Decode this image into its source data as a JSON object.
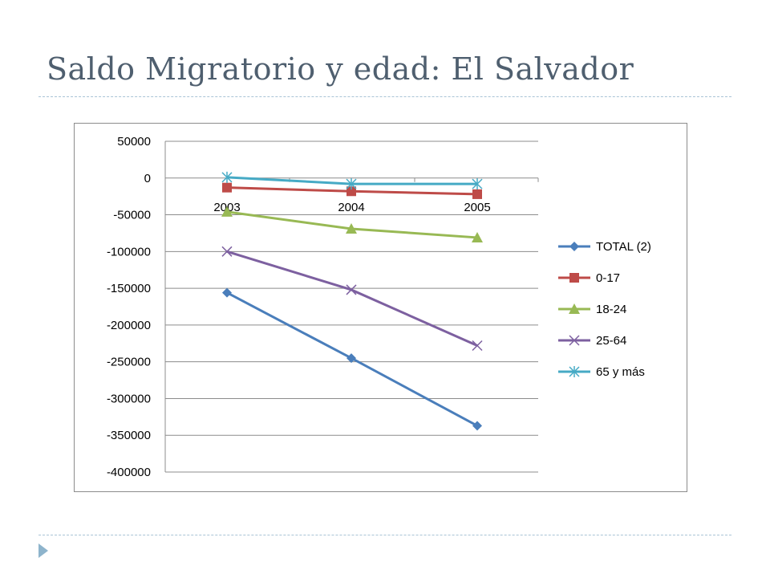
{
  "slide": {
    "title": "Saldo Migratorio y edad: El Salvador"
  },
  "colors": {
    "title": "#4f5f6f",
    "divider": "#a9c4d6",
    "bullet": "#8eb4cc",
    "grid": "#8c8c8c"
  },
  "chart_data": {
    "type": "line",
    "title": "",
    "xlabel": "",
    "ylabel": "",
    "categories": [
      "2003",
      "2004",
      "2005"
    ],
    "ylim": [
      -400000,
      50000
    ],
    "yticks": [
      50000,
      0,
      -50000,
      -100000,
      -150000,
      -200000,
      -250000,
      -300000,
      -350000,
      -400000
    ],
    "grid": true,
    "legend_position": "right",
    "series": [
      {
        "name": "TOTAL (2)",
        "values": [
          -156000,
          -245000,
          -337000
        ],
        "color": "#4a7ebb",
        "marker": "diamond"
      },
      {
        "name": "0-17",
        "values": [
          -13000,
          -18000,
          -22000
        ],
        "color": "#be4b48",
        "marker": "square"
      },
      {
        "name": "18-24",
        "values": [
          -46000,
          -69000,
          -81000
        ],
        "color": "#98b954",
        "marker": "triangle"
      },
      {
        "name": "25-64",
        "values": [
          -100000,
          -152000,
          -228000
        ],
        "color": "#7d60a0",
        "marker": "x"
      },
      {
        "name": "65 y más",
        "values": [
          1000,
          -8000,
          -8000
        ],
        "color": "#46aac5",
        "marker": "star"
      }
    ]
  }
}
